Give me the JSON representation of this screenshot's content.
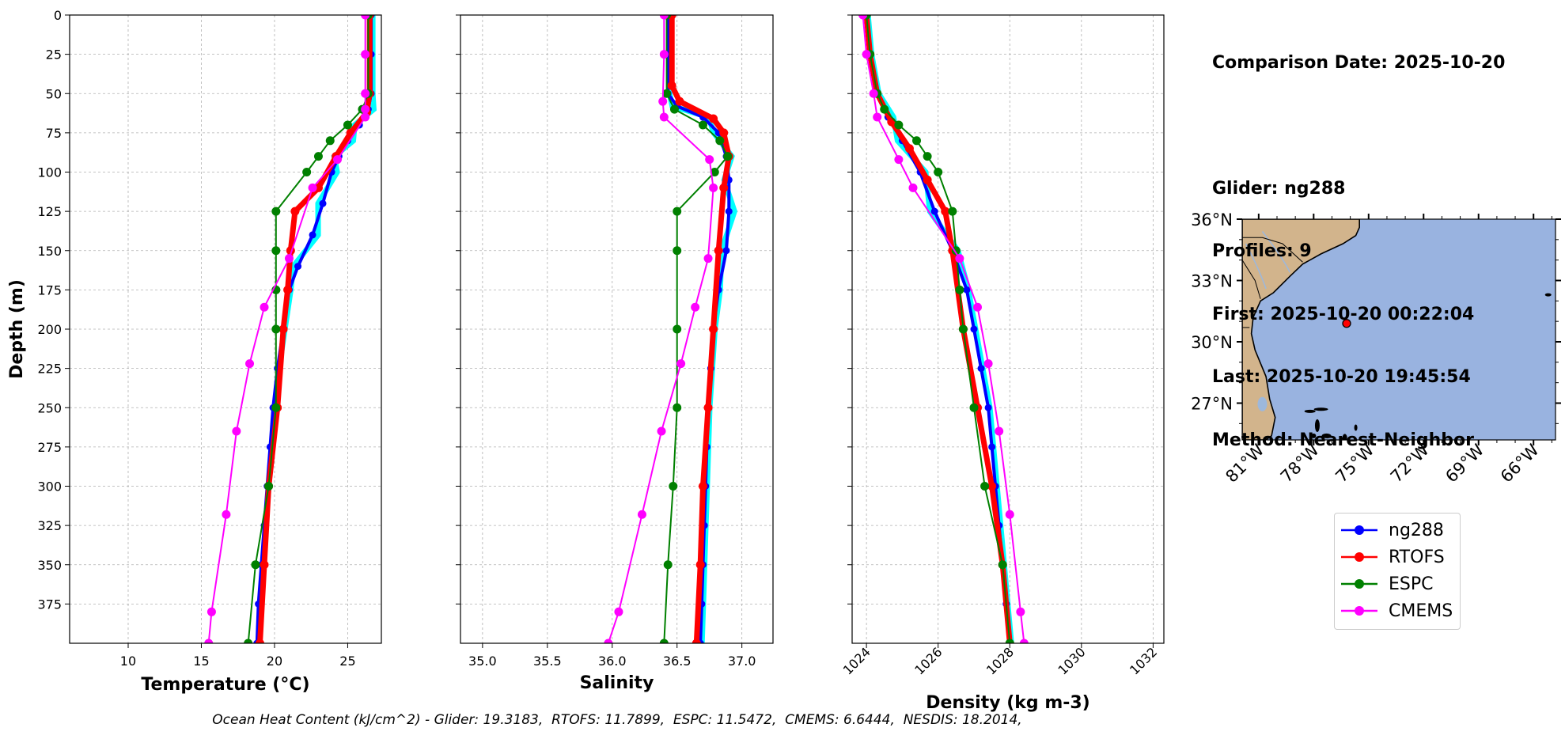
{
  "chart_data": [
    {
      "type": "line",
      "xlabel": "Temperature ($^oC$)",
      "xlabel_html": "Temperature (°C)",
      "ylabel": "Depth (m)",
      "xlim": [
        6,
        27.3
      ],
      "ylim": [
        400,
        0
      ],
      "xticks": [
        10,
        15,
        20,
        25
      ],
      "yticks": [
        0,
        25,
        50,
        75,
        100,
        125,
        150,
        175,
        200,
        225,
        250,
        275,
        300,
        325,
        350,
        375
      ],
      "grid": true,
      "series": [
        {
          "name": "ng288",
          "color": "#0000ff",
          "points": [
            [
              26.6,
              0
            ],
            [
              26.6,
              25
            ],
            [
              26.6,
              50
            ],
            [
              26.4,
              60
            ],
            [
              25.8,
              70
            ],
            [
              25.0,
              80
            ],
            [
              24.4,
              90
            ],
            [
              23.9,
              100
            ],
            [
              23.3,
              120
            ],
            [
              22.6,
              140
            ],
            [
              21.6,
              160
            ],
            [
              21.0,
              175
            ],
            [
              20.6,
              200
            ],
            [
              20.2,
              225
            ],
            [
              19.9,
              250
            ],
            [
              19.7,
              275
            ],
            [
              19.5,
              300
            ],
            [
              19.3,
              325
            ],
            [
              19.1,
              350
            ],
            [
              18.9,
              375
            ],
            [
              18.8,
              400
            ]
          ]
        },
        {
          "name": "RTOFS",
          "color": "#ff0000",
          "points": [
            [
              26.5,
              0
            ],
            [
              26.5,
              50
            ],
            [
              26.3,
              62
            ],
            [
              25.2,
              75
            ],
            [
              24.2,
              90
            ],
            [
              23.0,
              110
            ],
            [
              21.4,
              125
            ],
            [
              21.1,
              150
            ],
            [
              20.9,
              175
            ],
            [
              20.6,
              200
            ],
            [
              20.2,
              250
            ],
            [
              19.6,
              300
            ],
            [
              19.3,
              350
            ],
            [
              19.0,
              400
            ]
          ]
        },
        {
          "name": "ESPC",
          "color": "#008000",
          "points": [
            [
              26.4,
              0
            ],
            [
              26.4,
              50
            ],
            [
              26.0,
              60
            ],
            [
              25.0,
              70
            ],
            [
              23.8,
              80
            ],
            [
              23.0,
              90
            ],
            [
              22.2,
              100
            ],
            [
              20.1,
              125
            ],
            [
              20.1,
              150
            ],
            [
              20.1,
              175
            ],
            [
              20.1,
              200
            ],
            [
              20.1,
              250
            ],
            [
              19.6,
              300
            ],
            [
              18.7,
              350
            ],
            [
              18.2,
              400
            ]
          ]
        },
        {
          "name": "CMEMS",
          "color": "#ff00ff",
          "points": [
            [
              26.2,
              0
            ],
            [
              26.2,
              25
            ],
            [
              26.2,
              50
            ],
            [
              26.2,
              60
            ],
            [
              26.2,
              65
            ],
            [
              24.3,
              92
            ],
            [
              22.6,
              110
            ],
            [
              21.0,
              155
            ],
            [
              19.3,
              186
            ],
            [
              18.3,
              222
            ],
            [
              17.4,
              265
            ],
            [
              16.7,
              318
            ],
            [
              15.7,
              380
            ],
            [
              15.5,
              400
            ]
          ]
        }
      ]
    },
    {
      "type": "line",
      "xlabel": "Salinity",
      "xlim": [
        34.83,
        37.24
      ],
      "ylim": [
        400,
        0
      ],
      "xticks": [
        35.0,
        35.5,
        36.0,
        36.5,
        37.0
      ],
      "xtick_labels": [
        "35.0",
        "35.5",
        "36.0",
        "36.5",
        "37.0"
      ],
      "grid": true,
      "series": [
        {
          "name": "ng288",
          "color": "#0000ff",
          "points": [
            [
              36.43,
              0
            ],
            [
              36.43,
              50
            ],
            [
              36.5,
              58
            ],
            [
              36.7,
              65
            ],
            [
              36.82,
              75
            ],
            [
              36.88,
              90
            ],
            [
              36.9,
              105
            ],
            [
              36.9,
              125
            ],
            [
              36.88,
              150
            ],
            [
              36.82,
              175
            ],
            [
              36.78,
              200
            ],
            [
              36.76,
              225
            ],
            [
              36.74,
              250
            ],
            [
              36.73,
              275
            ],
            [
              36.72,
              300
            ],
            [
              36.71,
              325
            ],
            [
              36.7,
              350
            ],
            [
              36.69,
              375
            ],
            [
              36.68,
              400
            ]
          ]
        },
        {
          "name": "RTOFS",
          "color": "#ff0000",
          "points": [
            [
              36.46,
              0
            ],
            [
              36.46,
              45
            ],
            [
              36.52,
              55
            ],
            [
              36.78,
              66
            ],
            [
              36.86,
              75
            ],
            [
              36.9,
              90
            ],
            [
              36.86,
              110
            ],
            [
              36.82,
              150
            ],
            [
              36.78,
              200
            ],
            [
              36.74,
              250
            ],
            [
              36.7,
              300
            ],
            [
              36.68,
              350
            ],
            [
              36.65,
              400
            ]
          ]
        },
        {
          "name": "ESPC",
          "color": "#008000",
          "points": [
            [
              36.42,
              0
            ],
            [
              36.42,
              50
            ],
            [
              36.48,
              60
            ],
            [
              36.7,
              70
            ],
            [
              36.83,
              80
            ],
            [
              36.89,
              90
            ],
            [
              36.79,
              100
            ],
            [
              36.5,
              125
            ],
            [
              36.5,
              150
            ],
            [
              36.5,
              200
            ],
            [
              36.5,
              250
            ],
            [
              36.47,
              300
            ],
            [
              36.43,
              350
            ],
            [
              36.4,
              400
            ]
          ]
        },
        {
          "name": "CMEMS",
          "color": "#ff00ff",
          "points": [
            [
              36.4,
              0
            ],
            [
              36.4,
              25
            ],
            [
              36.39,
              55
            ],
            [
              36.4,
              65
            ],
            [
              36.75,
              92
            ],
            [
              36.78,
              110
            ],
            [
              36.74,
              155
            ],
            [
              36.64,
              186
            ],
            [
              36.53,
              222
            ],
            [
              36.38,
              265
            ],
            [
              36.23,
              318
            ],
            [
              36.05,
              380
            ],
            [
              35.97,
              400
            ]
          ]
        }
      ]
    },
    {
      "type": "line",
      "xlabel": "Density (kg m-3)",
      "xlim": [
        1023.6,
        1032.3
      ],
      "ylim": [
        400,
        0
      ],
      "xticks": [
        1024,
        1026,
        1028,
        1030,
        1032
      ],
      "grid": true,
      "series": [
        {
          "name": "ng288",
          "color": "#0000ff",
          "points": [
            [
              1024.0,
              0
            ],
            [
              1024.1,
              25
            ],
            [
              1024.3,
              50
            ],
            [
              1024.6,
              65
            ],
            [
              1025.0,
              80
            ],
            [
              1025.5,
              100
            ],
            [
              1025.9,
              125
            ],
            [
              1026.4,
              150
            ],
            [
              1026.8,
              175
            ],
            [
              1027.0,
              200
            ],
            [
              1027.2,
              225
            ],
            [
              1027.4,
              250
            ],
            [
              1027.5,
              275
            ],
            [
              1027.6,
              300
            ],
            [
              1027.7,
              325
            ],
            [
              1027.8,
              350
            ],
            [
              1027.9,
              375
            ],
            [
              1028.0,
              400
            ]
          ]
        },
        {
          "name": "RTOFS",
          "color": "#ff0000",
          "points": [
            [
              1024.0,
              0
            ],
            [
              1024.1,
              25
            ],
            [
              1024.3,
              50
            ],
            [
              1024.7,
              68
            ],
            [
              1025.2,
              85
            ],
            [
              1025.7,
              105
            ],
            [
              1026.2,
              125
            ],
            [
              1026.4,
              150
            ],
            [
              1026.7,
              200
            ],
            [
              1027.1,
              250
            ],
            [
              1027.5,
              300
            ],
            [
              1027.8,
              350
            ],
            [
              1028.0,
              400
            ]
          ]
        },
        {
          "name": "ESPC",
          "color": "#008000",
          "points": [
            [
              1024.0,
              0
            ],
            [
              1024.1,
              25
            ],
            [
              1024.3,
              50
            ],
            [
              1024.5,
              60
            ],
            [
              1024.9,
              70
            ],
            [
              1025.4,
              80
            ],
            [
              1025.7,
              90
            ],
            [
              1026.0,
              100
            ],
            [
              1026.4,
              125
            ],
            [
              1026.5,
              150
            ],
            [
              1026.6,
              175
            ],
            [
              1026.7,
              200
            ],
            [
              1027.0,
              250
            ],
            [
              1027.3,
              300
            ],
            [
              1027.8,
              350
            ],
            [
              1028.0,
              400
            ]
          ]
        },
        {
          "name": "CMEMS",
          "color": "#ff00ff",
          "points": [
            [
              1023.9,
              0
            ],
            [
              1024.0,
              25
            ],
            [
              1024.2,
              50
            ],
            [
              1024.3,
              65
            ],
            [
              1024.9,
              92
            ],
            [
              1025.3,
              110
            ],
            [
              1026.6,
              155
            ],
            [
              1027.1,
              186
            ],
            [
              1027.4,
              222
            ],
            [
              1027.7,
              265
            ],
            [
              1028.0,
              318
            ],
            [
              1028.3,
              380
            ],
            [
              1028.4,
              400
            ]
          ]
        }
      ]
    }
  ],
  "info": {
    "comparison_date": "Comparison Date: 2025-10-20",
    "glider": "Glider: ng288",
    "profiles": "Profiles: 9",
    "first": "First: 2025-10-20 00:22:04",
    "last": "Last: 2025-10-20 19:45:54",
    "method": "Method: Nearest-Neighbor"
  },
  "map": {
    "xticks": [
      -81,
      -78,
      -75,
      -72,
      -69,
      -66
    ],
    "xtick_labels": [
      "81°W",
      "78°W",
      "75°W",
      "72°W",
      "69°W",
      "66°W"
    ],
    "yticks": [
      36,
      33,
      30,
      27
    ],
    "ytick_labels": [
      "36°N",
      "33°N",
      "30°N",
      "27°N"
    ],
    "lon_range": [
      -81.9,
      -64.8
    ],
    "lat_range": [
      25.2,
      36.0
    ],
    "glider_position": {
      "lon": -76.2,
      "lat": 30.9
    },
    "land_color": "#d2b48c",
    "ocean_color": "#99b3e0",
    "marker_color": "#ff0000"
  },
  "legend": {
    "items": [
      {
        "label": "ng288",
        "color": "#0000ff"
      },
      {
        "label": "RTOFS",
        "color": "#ff0000"
      },
      {
        "label": "ESPC",
        "color": "#008000"
      },
      {
        "label": "CMEMS",
        "color": "#ff00ff"
      }
    ]
  },
  "footer": {
    "ohc": "Ocean Heat Content (kJ/cm^2) - Glider: 19.3183,  RTOFS: 11.7899,  ESPC: 11.5472,  CMEMS: 6.6444,  NESDIS: 18.2014,"
  }
}
